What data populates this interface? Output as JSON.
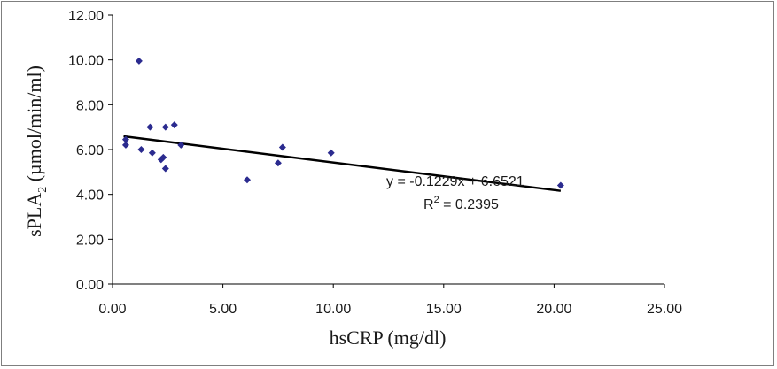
{
  "chart_data": {
    "type": "scatter",
    "title": "",
    "xlabel": "hsCRP (mg/dl)",
    "ylabel_main": "sPLA",
    "ylabel_sub": "2",
    "ylabel_rest": " (µmol/min/ml)",
    "xlim": [
      0,
      25
    ],
    "ylim": [
      0,
      12
    ],
    "x_ticks": [
      0,
      5,
      10,
      15,
      20,
      25
    ],
    "x_tick_labels": [
      "0.00",
      "5.00",
      "10.00",
      "15.00",
      "20.00",
      "25.00"
    ],
    "y_ticks": [
      0,
      2,
      4,
      6,
      8,
      10,
      12
    ],
    "y_tick_labels": [
      "0.00",
      "2.00",
      "4.00",
      "6.00",
      "8.00",
      "10.00",
      "12.00"
    ],
    "grid": false,
    "legend": "none",
    "marker_color": "#2b2b8f",
    "trend_color": "#000000",
    "series": [
      {
        "points": [
          {
            "x": 0.6,
            "y": 6.2
          },
          {
            "x": 0.6,
            "y": 6.45
          },
          {
            "x": 1.2,
            "y": 9.95
          },
          {
            "x": 1.3,
            "y": 6.0
          },
          {
            "x": 1.7,
            "y": 7.0
          },
          {
            "x": 1.8,
            "y": 5.85
          },
          {
            "x": 2.2,
            "y": 5.55
          },
          {
            "x": 2.3,
            "y": 5.65
          },
          {
            "x": 2.4,
            "y": 7.0
          },
          {
            "x": 2.4,
            "y": 5.15
          },
          {
            "x": 2.8,
            "y": 7.1
          },
          {
            "x": 3.1,
            "y": 6.2
          },
          {
            "x": 6.1,
            "y": 4.65
          },
          {
            "x": 7.5,
            "y": 5.4
          },
          {
            "x": 7.7,
            "y": 6.1
          },
          {
            "x": 9.9,
            "y": 5.85
          },
          {
            "x": 20.3,
            "y": 4.4
          }
        ]
      }
    ],
    "trendline": {
      "slope": -0.1229,
      "intercept": 6.6521,
      "x_range": [
        0.5,
        20.3
      ],
      "equation": "y = -0.1229x + 6.6521",
      "r2_prefix": "R",
      "r2_sup": "2",
      "r2_rest": " = 0.2395"
    }
  }
}
